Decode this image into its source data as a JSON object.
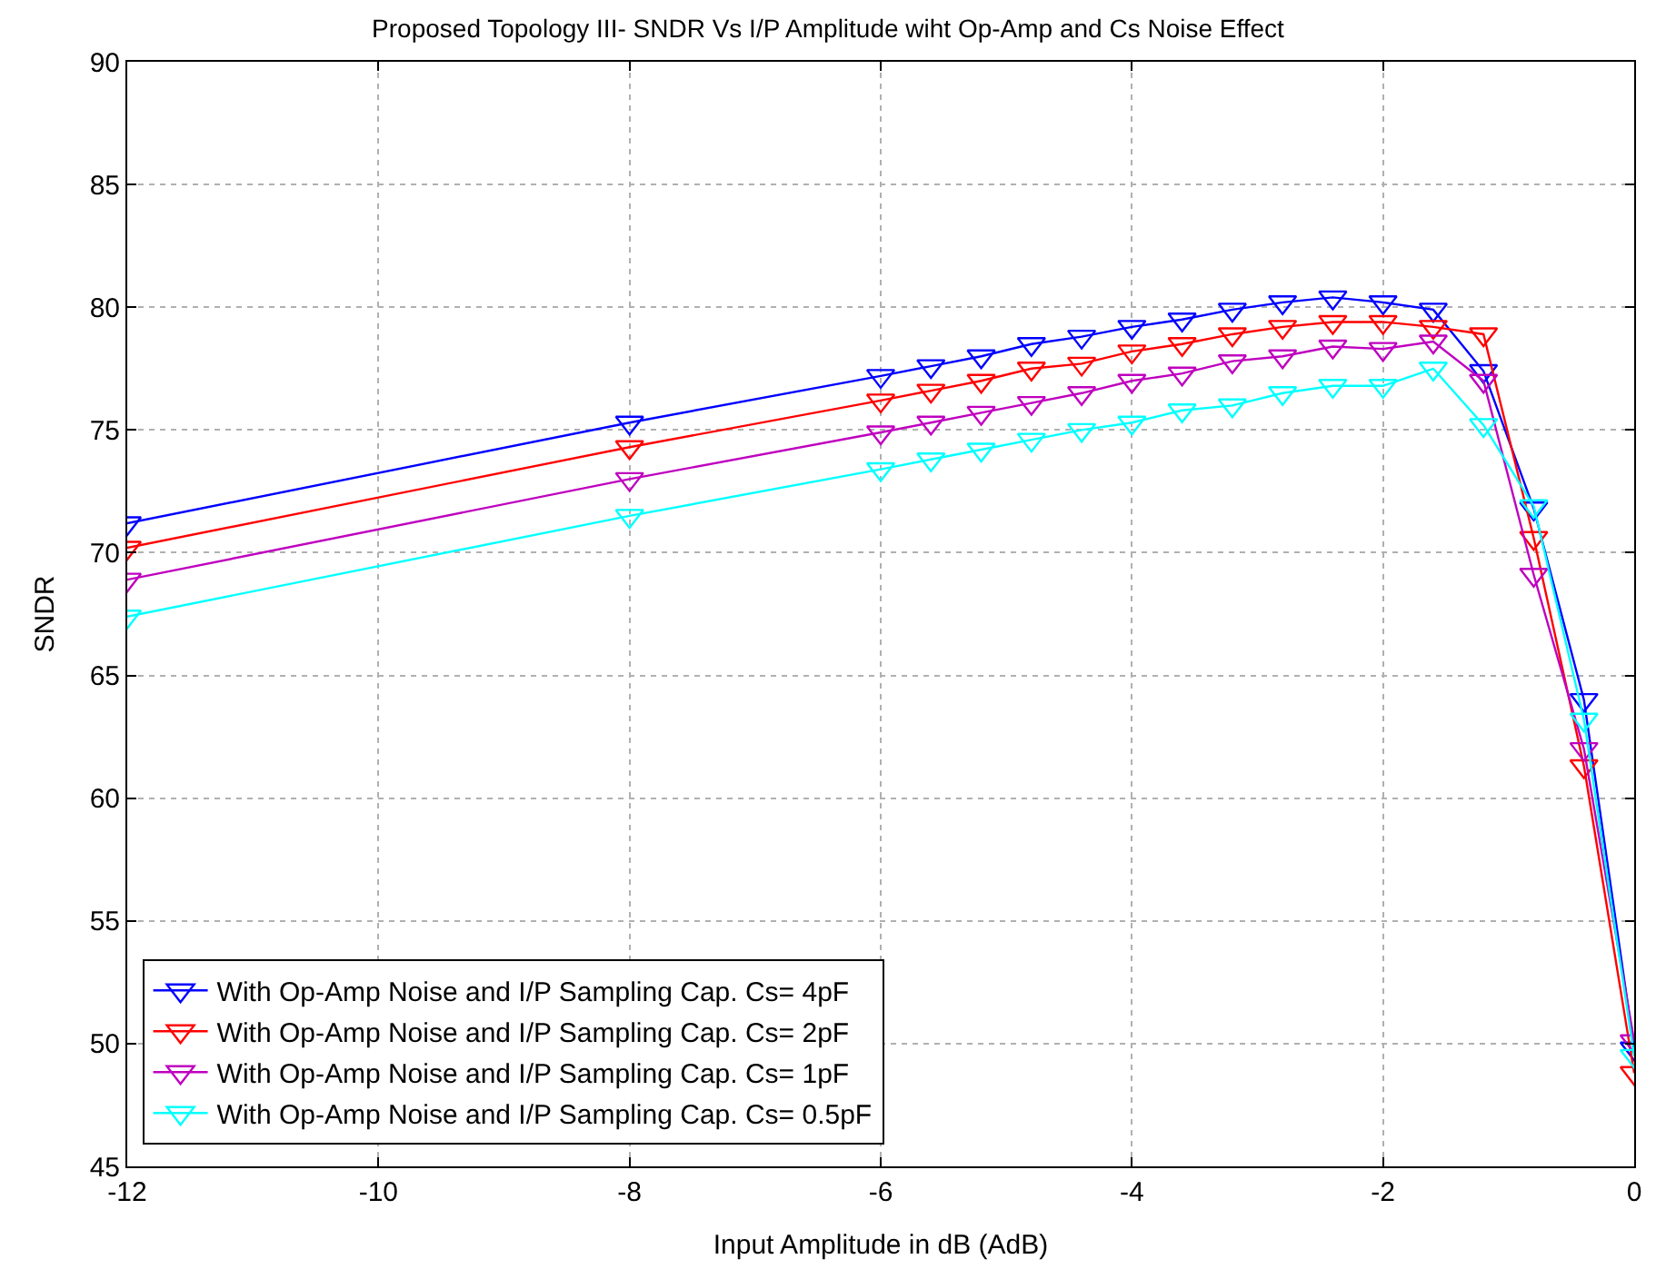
{
  "chart_data": {
    "type": "line",
    "title": "Proposed Topology III- SNDR Vs I/P Amplitude wiht Op-Amp and Cs Noise Effect",
    "xlabel": "Input Amplitude in dB (AdB)",
    "ylabel": "SNDR",
    "x": [
      -12,
      -8,
      -6,
      -5.6,
      -5.2,
      -4.8,
      -4.4,
      -4,
      -3.6,
      -3.2,
      -2.8,
      -2.4,
      -2,
      -1.6,
      -1.2,
      -0.8,
      -0.4,
      0
    ],
    "series": [
      {
        "name": "With Op-Amp Noise and I/P Sampling Cap. Cs= 4pF",
        "color": "#0000ff",
        "values": [
          71.2,
          75.3,
          77.2,
          77.6,
          78.0,
          78.5,
          78.8,
          79.2,
          79.5,
          79.9,
          80.2,
          80.4,
          80.2,
          79.9,
          77.4,
          71.8,
          64.0,
          49.8
        ]
      },
      {
        "name": "With Op-Amp Noise and I/P Sampling Cap. Cs= 2pF",
        "color": "#ff0000",
        "values": [
          70.2,
          74.3,
          76.2,
          76.6,
          77.0,
          77.5,
          77.7,
          78.2,
          78.5,
          78.9,
          79.2,
          79.4,
          79.4,
          79.2,
          78.9,
          70.6,
          61.3,
          48.8
        ]
      },
      {
        "name": "With Op-Amp Noise and I/P Sampling Cap. Cs= 1pF",
        "color": "#bf00bf",
        "values": [
          68.9,
          73.0,
          74.9,
          75.3,
          75.7,
          76.1,
          76.5,
          77.0,
          77.3,
          77.8,
          78.0,
          78.4,
          78.3,
          78.6,
          77.0,
          69.1,
          62.0,
          50.1
        ]
      },
      {
        "name": "With Op-Amp Noise and I/P Sampling Cap. Cs= 0.5pF",
        "color": "#00ffff",
        "values": [
          67.4,
          71.5,
          73.4,
          73.8,
          74.2,
          74.6,
          75.0,
          75.3,
          75.8,
          76.0,
          76.5,
          76.8,
          76.8,
          77.5,
          75.2,
          71.9,
          63.2,
          49.5
        ]
      }
    ],
    "xlim": [
      -12,
      0
    ],
    "xticks": [
      -12,
      -10,
      -8,
      -6,
      -4,
      -2,
      0
    ],
    "ylim": [
      45,
      90
    ],
    "yticks": [
      45,
      50,
      55,
      60,
      65,
      70,
      75,
      80,
      85,
      90
    ],
    "grid": true,
    "legend": "bottom left",
    "marker": "triangle",
    "line_style": "solid"
  }
}
